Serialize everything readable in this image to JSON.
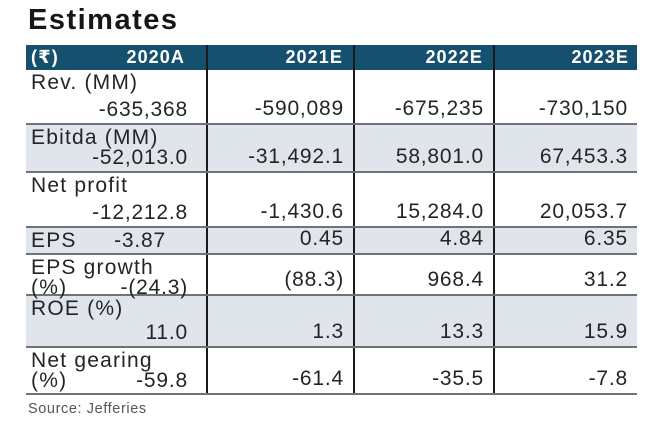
{
  "title": "Estimates",
  "source": "Source: Jefferies",
  "chart_data": {
    "type": "table",
    "title": "Estimates",
    "currency_label": "(₹)",
    "columns": [
      "2020A",
      "2021E",
      "2022E",
      "2023E"
    ],
    "rows": [
      {
        "metric": "Rev. (MM)",
        "label_line1": "Rev. (MM)",
        "label_line2": "",
        "two_line": true,
        "shaded": false,
        "values": [
          "-635,368",
          "-590,089",
          "-675,235",
          "-730,150"
        ]
      },
      {
        "metric": "Ebitda (MM)",
        "label_line1": "Ebitda (MM)",
        "label_line2": "",
        "two_line": true,
        "shaded": true,
        "values": [
          "-52,013.0",
          "-31,492.1",
          "58,801.0",
          "67,453.3"
        ]
      },
      {
        "metric": "Net profit",
        "label_line1": "Net profit",
        "label_line2": "",
        "two_line": true,
        "shaded": false,
        "values": [
          "-12,212.8",
          "-1,430.6",
          "15,284.0",
          "20,053.7"
        ]
      },
      {
        "metric": "EPS",
        "label_line1": "EPS",
        "label_line2": "",
        "two_line": false,
        "shaded": true,
        "values": [
          "-3.87",
          "0.45",
          "4.84",
          "6.35"
        ]
      },
      {
        "metric": "EPS growth (%)",
        "label_line1": "EPS growth",
        "label_line2": "(%)",
        "two_line": true,
        "shaded": false,
        "values": [
          "-(24.3)",
          "(88.3)",
          "968.4",
          "31.2"
        ]
      },
      {
        "metric": "ROE (%)",
        "label_line1": "ROE (%)",
        "label_line2": "",
        "two_line": true,
        "shaded": true,
        "values": [
          "11.0",
          "1.3",
          "13.3",
          "15.9"
        ]
      },
      {
        "metric": "Net gearing (%)",
        "label_line1": "Net gearing",
        "label_line2": "(%)",
        "two_line": true,
        "shaded": false,
        "values": [
          "-59.8",
          "-61.4",
          "-35.5",
          "-7.8"
        ]
      }
    ],
    "source": "Source: Jefferies"
  },
  "colors": {
    "header_bg": "#16506f",
    "shaded_row": "#dfe5ea",
    "text": "#222527",
    "header_text": "#ffffff",
    "source_text": "#53575b",
    "column_divider": "#1a1a1a",
    "row_divider": "#6e7377"
  }
}
